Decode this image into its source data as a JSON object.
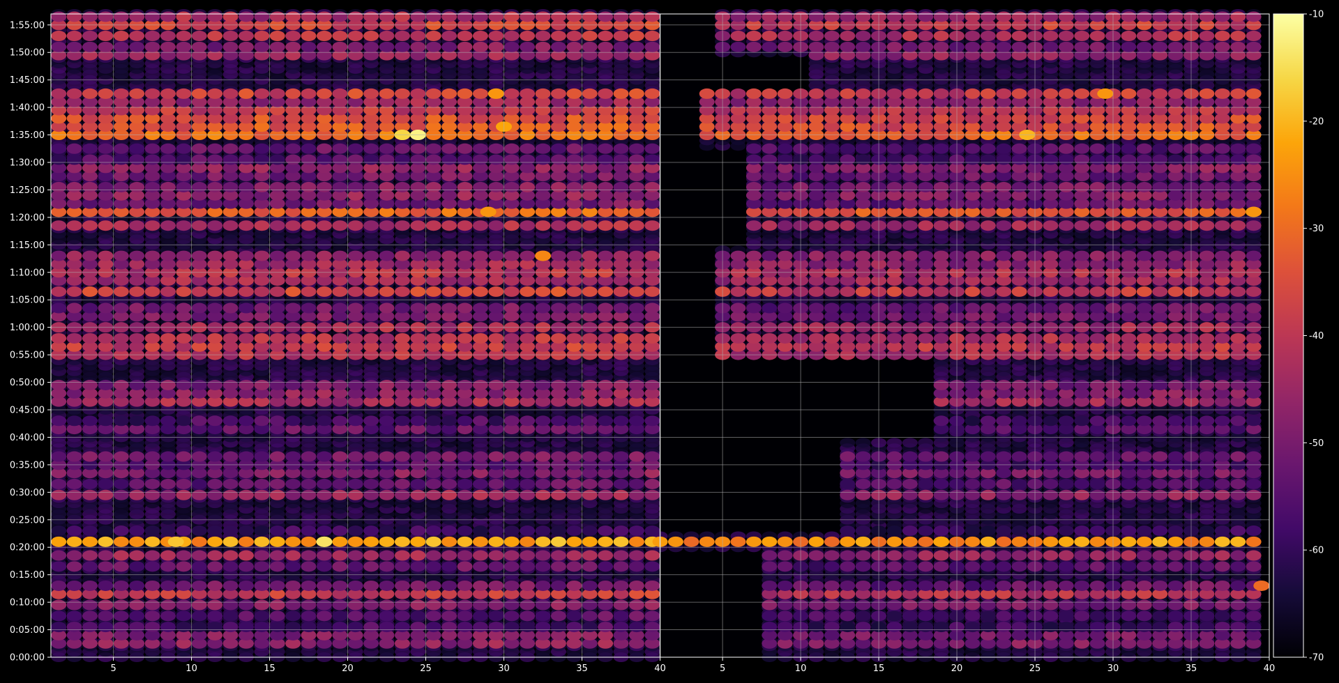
{
  "chart_data": {
    "type": "heatmap",
    "title": "",
    "xlabel": "",
    "ylabel": "",
    "grid": true,
    "panels": [
      {
        "name": "left",
        "xlim": [
          1,
          40
        ],
        "xticks": [
          "5",
          "10",
          "15",
          "20",
          "25",
          "30",
          "35",
          "40"
        ]
      },
      {
        "name": "right",
        "xlim": [
          1,
          40
        ],
        "xticks": [
          "5",
          "10",
          "15",
          "20",
          "25",
          "30",
          "35",
          "40"
        ]
      }
    ],
    "y_axis": {
      "unit": "h:mm:ss",
      "range": [
        "0:00:00",
        "1:57:00"
      ],
      "ticks": [
        "0:00:00",
        "0:05:00",
        "0:10:00",
        "0:15:00",
        "0:20:00",
        "0:25:00",
        "0:30:00",
        "0:35:00",
        "0:40:00",
        "0:45:00",
        "0:50:00",
        "0:55:00",
        "1:00:00",
        "1:05:00",
        "1:10:00",
        "1:15:00",
        "1:20:00",
        "1:25:00",
        "1:30:00",
        "1:35:00",
        "1:40:00",
        "1:45:00",
        "1:50:00",
        "1:55:00"
      ]
    },
    "colorbar": {
      "colormap": "inferno",
      "range": [
        -70,
        -10
      ],
      "ticks": [
        "-10",
        "-20",
        "-30",
        "-40",
        "-50",
        "-60",
        "-70"
      ]
    },
    "bands": [
      {
        "t": "0:02:30",
        "v": -48
      },
      {
        "t": "0:04:00",
        "v": -50
      },
      {
        "t": "0:05:30",
        "v": -58
      },
      {
        "t": "0:07:30",
        "v": -56
      },
      {
        "t": "0:09:30",
        "v": -50
      },
      {
        "t": "0:11:30",
        "v": -40
      },
      {
        "t": "0:13:00",
        "v": -52
      },
      {
        "t": "0:16:30",
        "v": -54
      },
      {
        "t": "0:18:30",
        "v": -46
      },
      {
        "t": "0:21:00",
        "v": -24
      },
      {
        "t": "0:23:00",
        "v": -60
      },
      {
        "t": "0:29:30",
        "v": -46
      },
      {
        "t": "0:31:30",
        "v": -54
      },
      {
        "t": "0:33:30",
        "v": -50
      },
      {
        "t": "0:35:00",
        "v": -56
      },
      {
        "t": "0:36:30",
        "v": -52
      },
      {
        "t": "0:41:30",
        "v": -54
      },
      {
        "t": "0:43:00",
        "v": -58
      },
      {
        "t": "0:46:30",
        "v": -44
      },
      {
        "t": "0:48:00",
        "v": -48
      },
      {
        "t": "0:49:30",
        "v": -50
      },
      {
        "t": "0:55:00",
        "v": -42
      },
      {
        "t": "0:56:30",
        "v": -40
      },
      {
        "t": "0:58:00",
        "v": -42
      },
      {
        "t": "1:00:00",
        "v": -44
      },
      {
        "t": "1:02:00",
        "v": -50
      },
      {
        "t": "1:03:30",
        "v": -52
      },
      {
        "t": "1:06:30",
        "v": -38
      },
      {
        "t": "1:08:30",
        "v": -44
      },
      {
        "t": "1:10:00",
        "v": -42
      },
      {
        "t": "1:11:30",
        "v": -46
      },
      {
        "t": "1:13:00",
        "v": -48
      },
      {
        "t": "1:18:30",
        "v": -44
      },
      {
        "t": "1:21:00",
        "v": -32
      },
      {
        "t": "1:22:30",
        "v": -52
      },
      {
        "t": "1:24:00",
        "v": -48
      },
      {
        "t": "1:25:30",
        "v": -50
      },
      {
        "t": "1:27:30",
        "v": -52
      },
      {
        "t": "1:29:00",
        "v": -48
      },
      {
        "t": "1:30:30",
        "v": -56
      },
      {
        "t": "1:32:30",
        "v": -54
      },
      {
        "t": "1:35:00",
        "v": -30
      },
      {
        "t": "1:36:30",
        "v": -34
      },
      {
        "t": "1:38:00",
        "v": -36
      },
      {
        "t": "1:39:30",
        "v": -40
      },
      {
        "t": "1:41:00",
        "v": -46
      },
      {
        "t": "1:42:30",
        "v": -38
      },
      {
        "t": "1:49:30",
        "v": -46
      },
      {
        "t": "1:51:00",
        "v": -50
      },
      {
        "t": "1:53:00",
        "v": -42
      },
      {
        "t": "1:55:00",
        "v": -38
      },
      {
        "t": "1:56:30",
        "v": -44
      }
    ],
    "peaks": [
      {
        "panel": "left",
        "x": 24.5,
        "t": "1:35:00",
        "v": -12
      },
      {
        "panel": "left",
        "x": 23.5,
        "t": "1:35:00",
        "v": -16
      },
      {
        "panel": "left",
        "x": 30,
        "t": "1:36:30",
        "v": -22
      },
      {
        "panel": "left",
        "x": 18.5,
        "t": "0:21:00",
        "v": -14
      },
      {
        "panel": "left",
        "x": 9,
        "t": "0:21:00",
        "v": -18
      },
      {
        "panel": "left",
        "x": 32.5,
        "t": "1:13:00",
        "v": -26
      },
      {
        "panel": "left",
        "x": 29,
        "t": "1:21:00",
        "v": -24
      },
      {
        "panel": "left",
        "x": 29.5,
        "t": "1:42:30",
        "v": -24
      },
      {
        "panel": "right",
        "x": 24.5,
        "t": "1:35:00",
        "v": -20
      },
      {
        "panel": "right",
        "x": 29.5,
        "t": "1:42:30",
        "v": -24
      },
      {
        "panel": "right",
        "x": 19,
        "t": "0:21:00",
        "v": -22
      },
      {
        "panel": "right",
        "x": 39,
        "t": "1:21:00",
        "v": -24
      },
      {
        "panel": "right",
        "x": 39.5,
        "t": "0:13:00",
        "v": -30
      }
    ],
    "right_panel_onsets": [
      {
        "t": "0:00:00",
        "x": 8
      },
      {
        "t": "0:20:00",
        "x": 1
      },
      {
        "t": "0:23:00",
        "x": 13
      },
      {
        "t": "0:40:00",
        "x": 19
      },
      {
        "t": "0:55:00",
        "x": 5
      },
      {
        "t": "1:15:00",
        "x": 7
      },
      {
        "t": "1:33:00",
        "x": 4
      },
      {
        "t": "1:43:00",
        "x": 11
      },
      {
        "t": "1:50:00",
        "x": 5
      }
    ]
  }
}
